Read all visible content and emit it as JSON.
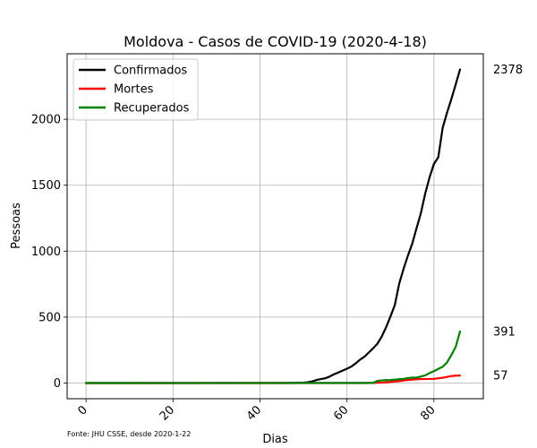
{
  "chart_data": {
    "type": "line",
    "title": "Moldova - Casos de COVID-19 (2020-4-18)",
    "xlabel": "Dias",
    "ylabel": "Pessoas",
    "xlim": [
      -4.35,
      91.35
    ],
    "ylim": [
      -118.9,
      2496.9
    ],
    "xticks": [
      0,
      20,
      40,
      60,
      80
    ],
    "yticks": [
      0,
      500,
      1000,
      1500,
      2000
    ],
    "xtick_labels": [
      "0",
      "20",
      "40",
      "60",
      "80"
    ],
    "ytick_labels": [
      "0",
      "500",
      "1000",
      "1500",
      "2000"
    ],
    "xtick_rotation": 45,
    "grid": true,
    "legend_position": "top-left",
    "source_note": "Fonte: JHU CSSE, desde 2020-1-22",
    "series": [
      {
        "name": "Confirmados",
        "color": "#000000",
        "end_label": "2378",
        "points": [
          [
            0,
            0
          ],
          [
            46,
            0
          ],
          [
            48,
            1
          ],
          [
            50,
            3
          ],
          [
            51,
            6
          ],
          [
            52,
            12
          ],
          [
            53,
            23
          ],
          [
            54,
            30
          ],
          [
            55,
            36
          ],
          [
            56,
            49
          ],
          [
            57,
            66
          ],
          [
            58,
            80
          ],
          [
            59,
            94
          ],
          [
            60,
            109
          ],
          [
            61,
            125
          ],
          [
            62,
            149
          ],
          [
            63,
            177
          ],
          [
            64,
            199
          ],
          [
            65,
            231
          ],
          [
            66,
            263
          ],
          [
            67,
            298
          ],
          [
            68,
            353
          ],
          [
            69,
            423
          ],
          [
            70,
            505
          ],
          [
            71,
            591
          ],
          [
            72,
            752
          ],
          [
            73,
            864
          ],
          [
            74,
            965
          ],
          [
            75,
            1056
          ],
          [
            76,
            1174
          ],
          [
            77,
            1289
          ],
          [
            78,
            1438
          ],
          [
            79,
            1560
          ],
          [
            80,
            1662
          ],
          [
            81,
            1712
          ],
          [
            82,
            1934
          ],
          [
            83,
            2049
          ],
          [
            84,
            2153
          ],
          [
            85,
            2264
          ],
          [
            86,
            2378
          ]
        ]
      },
      {
        "name": "Mortes",
        "color": "#ff0000",
        "end_label": "57",
        "points": [
          [
            0,
            0
          ],
          [
            64,
            0
          ],
          [
            66,
            1
          ],
          [
            67,
            2
          ],
          [
            68,
            3
          ],
          [
            69,
            5
          ],
          [
            70,
            8
          ],
          [
            71,
            12
          ],
          [
            72,
            14
          ],
          [
            73,
            19
          ],
          [
            74,
            23
          ],
          [
            75,
            26
          ],
          [
            76,
            29
          ],
          [
            77,
            30
          ],
          [
            78,
            30
          ],
          [
            79,
            31
          ],
          [
            80,
            32
          ],
          [
            81,
            36
          ],
          [
            82,
            40
          ],
          [
            83,
            46
          ],
          [
            84,
            53
          ],
          [
            85,
            56
          ],
          [
            86,
            57
          ]
        ]
      },
      {
        "name": "Recuperados",
        "color": "#008000",
        "end_label": "391",
        "points": [
          [
            0,
            0
          ],
          [
            66,
            1
          ],
          [
            67,
            16
          ],
          [
            68,
            20
          ],
          [
            69,
            22
          ],
          [
            70,
            23
          ],
          [
            71,
            26
          ],
          [
            72,
            29
          ],
          [
            73,
            32
          ],
          [
            74,
            38
          ],
          [
            75,
            41
          ],
          [
            76,
            41
          ],
          [
            77,
            50
          ],
          [
            78,
            58
          ],
          [
            79,
            76
          ],
          [
            80,
            90
          ],
          [
            81,
            107
          ],
          [
            82,
            123
          ],
          [
            83,
            156
          ],
          [
            84,
            212
          ],
          [
            85,
            274
          ],
          [
            86,
            391
          ]
        ]
      }
    ]
  }
}
